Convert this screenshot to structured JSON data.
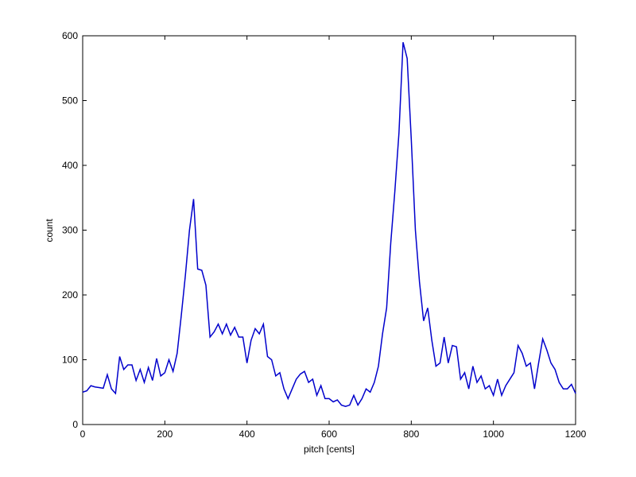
{
  "chart_data": {
    "type": "line",
    "xlabel": "pitch [cents]",
    "ylabel": "count",
    "x": [
      0,
      10,
      20,
      30,
      40,
      50,
      60,
      70,
      80,
      90,
      100,
      110,
      120,
      130,
      140,
      150,
      160,
      170,
      180,
      190,
      200,
      210,
      220,
      230,
      240,
      250,
      260,
      270,
      280,
      290,
      300,
      310,
      320,
      330,
      340,
      350,
      360,
      370,
      380,
      390,
      400,
      410,
      420,
      430,
      440,
      450,
      460,
      470,
      480,
      490,
      500,
      510,
      520,
      530,
      540,
      550,
      560,
      570,
      580,
      590,
      600,
      610,
      620,
      630,
      640,
      650,
      660,
      670,
      680,
      690,
      700,
      710,
      720,
      730,
      740,
      750,
      760,
      770,
      780,
      790,
      800,
      810,
      820,
      830,
      840,
      850,
      860,
      870,
      880,
      890,
      900,
      910,
      920,
      930,
      940,
      950,
      960,
      970,
      980,
      990,
      1000,
      1010,
      1020,
      1030,
      1040,
      1050,
      1060,
      1070,
      1080,
      1090,
      1100,
      1110,
      1120,
      1130,
      1140,
      1150,
      1160,
      1170,
      1180,
      1190,
      1200
    ],
    "series": [
      {
        "color": "#0000cc",
        "values": [
          50,
          52,
          60,
          58,
          57,
          56,
          77,
          55,
          48,
          105,
          85,
          92,
          92,
          68,
          85,
          65,
          88,
          68,
          102,
          75,
          80,
          100,
          82,
          110,
          168,
          230,
          300,
          348,
          240,
          238,
          215,
          135,
          143,
          155,
          140,
          155,
          138,
          150,
          135,
          135,
          95,
          130,
          148,
          140,
          155,
          105,
          100,
          75,
          80,
          55,
          40,
          55,
          70,
          78,
          82,
          65,
          70,
          45,
          60,
          40,
          40,
          35,
          38,
          30,
          28,
          30,
          45,
          30,
          40,
          55,
          50,
          65,
          90,
          140,
          180,
          280,
          360,
          450,
          590,
          565,
          440,
          300,
          220,
          160,
          180,
          130,
          90,
          95,
          135,
          95,
          122,
          120,
          70,
          80,
          55,
          90,
          65,
          75,
          55,
          60,
          45,
          70,
          45,
          60,
          70,
          80,
          122,
          110,
          90,
          95,
          55,
          95,
          132,
          115,
          95,
          85,
          65,
          55,
          55,
          62,
          48
        ]
      }
    ],
    "xlim": [
      0,
      1200
    ],
    "ylim": [
      0,
      600
    ],
    "xticks": [
      0,
      200,
      400,
      600,
      800,
      1000,
      1200
    ],
    "yticks": [
      0,
      100,
      200,
      300,
      400,
      500,
      600
    ]
  }
}
